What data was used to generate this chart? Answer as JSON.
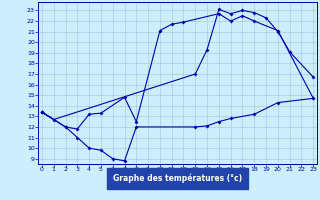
{
  "title": "Graphe des températures (°c)",
  "bg_color": "#cceeff",
  "grid_color": "#aaccdd",
  "line_color": "#0000aa",
  "axis_bg": "#2244aa",
  "x_ticks": [
    0,
    1,
    2,
    3,
    4,
    5,
    6,
    7,
    8,
    9,
    10,
    11,
    12,
    13,
    14,
    15,
    16,
    17,
    18,
    19,
    20,
    21,
    22,
    23
  ],
  "y_ticks": [
    9,
    10,
    11,
    12,
    13,
    14,
    15,
    16,
    17,
    18,
    19,
    20,
    21,
    22,
    23
  ],
  "ylim": [
    8.5,
    23.8
  ],
  "xlim": [
    -0.3,
    23.3
  ],
  "curve1_x": [
    0,
    1,
    13,
    14,
    15,
    16,
    17,
    18,
    19,
    20,
    21,
    23
  ],
  "curve1_y": [
    13.4,
    12.7,
    17.0,
    19.3,
    23.1,
    22.7,
    23.0,
    22.8,
    22.3,
    21.0,
    19.1,
    16.7
  ],
  "curve2_x": [
    0,
    2,
    3,
    4,
    5,
    7,
    8,
    10,
    11,
    12,
    15,
    16,
    17,
    18,
    20,
    23
  ],
  "curve2_y": [
    13.4,
    12.0,
    11.8,
    13.2,
    13.3,
    14.8,
    12.5,
    21.1,
    21.7,
    21.9,
    22.7,
    22.0,
    22.5,
    22.0,
    21.1,
    14.7
  ],
  "curve3_x": [
    0,
    2,
    3,
    4,
    5,
    6,
    7,
    8,
    13,
    14,
    15,
    16,
    18,
    20,
    23
  ],
  "curve3_y": [
    13.4,
    12.0,
    11.0,
    10.0,
    9.8,
    9.0,
    8.8,
    12.0,
    12.0,
    12.1,
    12.5,
    12.8,
    13.2,
    14.3,
    14.7
  ]
}
